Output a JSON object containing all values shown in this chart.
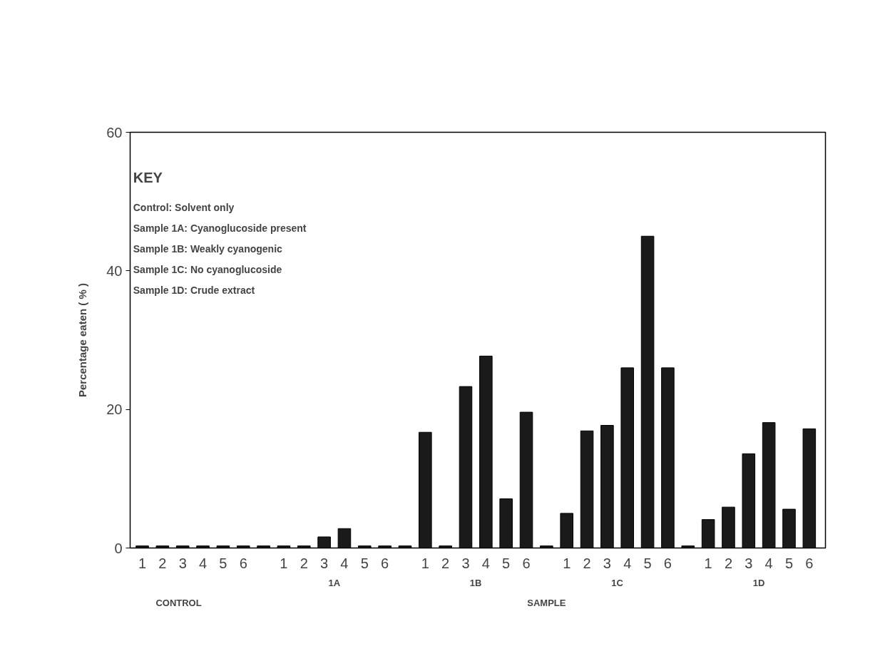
{
  "chart_data": {
    "type": "bar",
    "ylabel": "Percentage eaten ( % )",
    "categories": [
      "1",
      "2",
      "3",
      "4",
      "5",
      "6",
      null,
      "1",
      "2",
      "3",
      "4",
      "5",
      "6",
      null,
      "1",
      "2",
      "3",
      "4",
      "5",
      "6",
      null,
      "1",
      "2",
      "3",
      "4",
      "5",
      "6",
      null,
      "1",
      "2",
      "3",
      "4",
      "5",
      "6"
    ],
    "values": [
      0.3,
      0.3,
      0.3,
      0.3,
      0.3,
      0.3,
      0.3,
      0.3,
      0.3,
      1.6,
      2.8,
      0.3,
      0.3,
      0.3,
      16.7,
      0.3,
      23.3,
      27.7,
      7.1,
      19.6,
      0.3,
      5.0,
      16.9,
      17.7,
      26.0,
      45,
      26.0,
      0.3,
      4.1,
      5.9,
      13.6,
      18.1,
      5.6,
      17.2
    ],
    "color": "#1a1a1a",
    "ylim": [
      0,
      60
    ],
    "yticks": [
      0,
      20,
      40,
      60
    ],
    "grid": false,
    "annotations": [
      "1A",
      "1B",
      "1C",
      "1D",
      "CONTROL",
      "SAMPLE",
      "KEY",
      "Control:      Solvent only",
      "Sample 1A: Cyanoglucoside present",
      "Sample 1B: Weakly cyanogenic",
      "Sample 1C: No cyanoglucoside",
      "Sample 1D: Crude extract"
    ]
  }
}
